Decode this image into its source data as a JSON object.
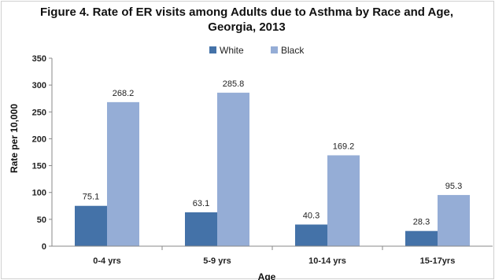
{
  "chart_data": {
    "type": "bar",
    "title_line1": "Figure 4. Rate of ER visits among Adults due to Asthma by Race and Age,",
    "title_line2": "Georgia, 2013",
    "xlabel": "Age",
    "ylabel": "Rate per 10,000",
    "ylim": [
      0,
      350
    ],
    "yticks": [
      0,
      50,
      100,
      150,
      200,
      250,
      300,
      350
    ],
    "categories": [
      "0-4 yrs",
      "5-9 yrs",
      "10-14 yrs",
      "15-17yrs"
    ],
    "series": [
      {
        "name": "White",
        "color": "#4472a8",
        "values": [
          75.1,
          63.1,
          40.3,
          28.3
        ],
        "labels": [
          "75.1",
          "63.1",
          "40.3",
          "28.3"
        ]
      },
      {
        "name": "Black",
        "color": "#95add6",
        "values": [
          268.2,
          285.8,
          169.2,
          95.3
        ],
        "labels": [
          "268.2",
          "285.8",
          "169.2",
          "95.3"
        ]
      }
    ],
    "legend_position": "top-center",
    "grid": false
  }
}
